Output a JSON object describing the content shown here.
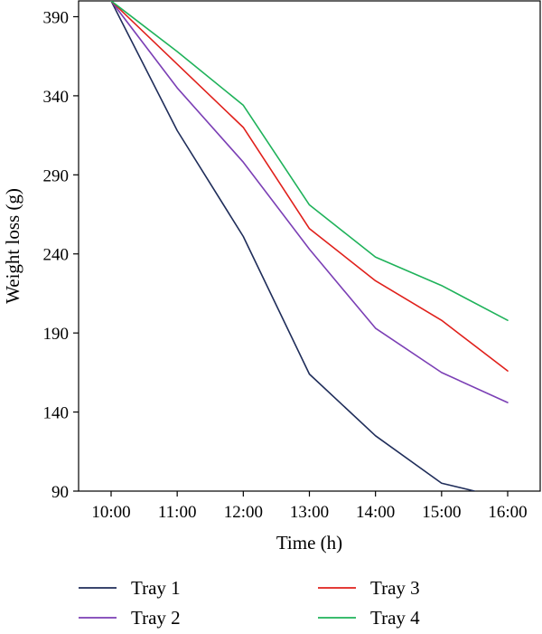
{
  "chart_data": {
    "type": "line",
    "title": "",
    "xlabel": "Time (h)",
    "ylabel": "Weight loss (g)",
    "x": [
      "10:00",
      "11:00",
      "12:00",
      "13:00",
      "14:00",
      "15:00",
      "16:00"
    ],
    "ylim": [
      90,
      400
    ],
    "yticks": [
      90,
      140,
      190,
      240,
      290,
      340,
      390
    ],
    "grid": false,
    "legend_position": "bottom",
    "series": [
      {
        "name": "Tray 1",
        "color": "#1f2d5a",
        "points": [
          {
            "x": 0,
            "y": 400
          },
          {
            "x": 1,
            "y": 318
          },
          {
            "x": 2,
            "y": 251
          },
          {
            "x": 3,
            "y": 164
          },
          {
            "x": 4,
            "y": 125
          },
          {
            "x": 5,
            "y": 95
          },
          {
            "x": 5.5,
            "y": 90
          }
        ]
      },
      {
        "name": "Tray 2",
        "color": "#7b3fb5",
        "points": [
          {
            "x": 0,
            "y": 400
          },
          {
            "x": 1,
            "y": 345
          },
          {
            "x": 2,
            "y": 298
          },
          {
            "x": 3,
            "y": 243
          },
          {
            "x": 4,
            "y": 193
          },
          {
            "x": 5,
            "y": 165
          },
          {
            "x": 6,
            "y": 146
          }
        ]
      },
      {
        "name": "Tray 3",
        "color": "#e0201b",
        "points": [
          {
            "x": 0,
            "y": 400
          },
          {
            "x": 1,
            "y": 360
          },
          {
            "x": 2,
            "y": 320
          },
          {
            "x": 3,
            "y": 256
          },
          {
            "x": 4,
            "y": 223
          },
          {
            "x": 5,
            "y": 198
          },
          {
            "x": 6,
            "y": 166
          }
        ]
      },
      {
        "name": "Tray 4",
        "color": "#1fb25a",
        "points": [
          {
            "x": 0,
            "y": 400
          },
          {
            "x": 1,
            "y": 368
          },
          {
            "x": 2,
            "y": 334
          },
          {
            "x": 3,
            "y": 271
          },
          {
            "x": 4,
            "y": 238
          },
          {
            "x": 5,
            "y": 220
          },
          {
            "x": 6,
            "y": 198
          }
        ]
      }
    ]
  }
}
